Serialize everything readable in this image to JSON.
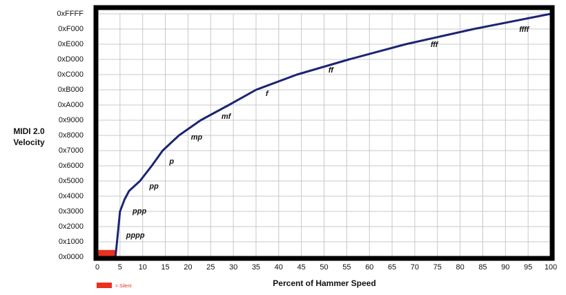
{
  "chart_data": {
    "type": "line",
    "xlabel": "Percent of Hammer Speed",
    "ylabel": [
      "MIDI 2.0",
      "Velocity"
    ],
    "x": [
      4,
      4.5,
      5,
      6,
      7,
      9.4,
      12,
      14.4,
      18,
      22.8,
      29,
      35,
      44,
      55.5,
      68,
      83,
      100
    ],
    "values": [
      0,
      6000,
      12288,
      15500,
      17800,
      20480,
      24576,
      28672,
      32768,
      36864,
      40960,
      45056,
      49152,
      53248,
      57344,
      61440,
      65535
    ],
    "color": "#1c2473",
    "xlim": [
      0,
      100
    ],
    "ylim": [
      0,
      65535
    ],
    "xticks": [
      0,
      5,
      10,
      15,
      20,
      25,
      30,
      35,
      40,
      45,
      50,
      55,
      60,
      65,
      70,
      75,
      80,
      85,
      90,
      95,
      100
    ],
    "yticks": [
      {
        "value": 0,
        "label": "0x0000"
      },
      {
        "value": 4096,
        "label": "0x1000"
      },
      {
        "value": 8192,
        "label": "0x2000"
      },
      {
        "value": 12288,
        "label": "0x3000"
      },
      {
        "value": 16384,
        "label": "0x4000"
      },
      {
        "value": 20480,
        "label": "0x5000"
      },
      {
        "value": 24576,
        "label": "0x6000"
      },
      {
        "value": 28672,
        "label": "0x7000"
      },
      {
        "value": 32768,
        "label": "0x8000"
      },
      {
        "value": 36864,
        "label": "0x9000"
      },
      {
        "value": 40960,
        "label": "0xA000"
      },
      {
        "value": 45056,
        "label": "0xB000"
      },
      {
        "value": 49152,
        "label": "0xC000"
      },
      {
        "value": 53248,
        "label": "0xD000"
      },
      {
        "value": 57344,
        "label": "0xE000"
      },
      {
        "value": 61440,
        "label": "0xF000"
      },
      {
        "value": 65535,
        "label": "0xFFFF"
      }
    ],
    "grid": true,
    "annotations": [
      {
        "text": "pppp",
        "x": 8.4,
        "y": 5770
      },
      {
        "text": "ppp",
        "x": 9.3,
        "y": 12290
      },
      {
        "text": "pp",
        "x": 12.5,
        "y": 18990
      },
      {
        "text": "p",
        "x": 16.4,
        "y": 25690
      },
      {
        "text": "mp",
        "x": 21.9,
        "y": 32210
      },
      {
        "text": "mf",
        "x": 28.4,
        "y": 37790
      },
      {
        "text": "f",
        "x": 37.4,
        "y": 43940
      },
      {
        "text": "ff",
        "x": 51.5,
        "y": 50270
      },
      {
        "text": "fff",
        "x": 74.3,
        "y": 57160
      },
      {
        "text": "ffff",
        "x": 94.1,
        "y": 61250
      }
    ],
    "silent_region": {
      "label": "= Silent",
      "color": "#e8321f",
      "x": [
        0,
        4
      ],
      "y": [
        0,
        1900
      ]
    }
  }
}
